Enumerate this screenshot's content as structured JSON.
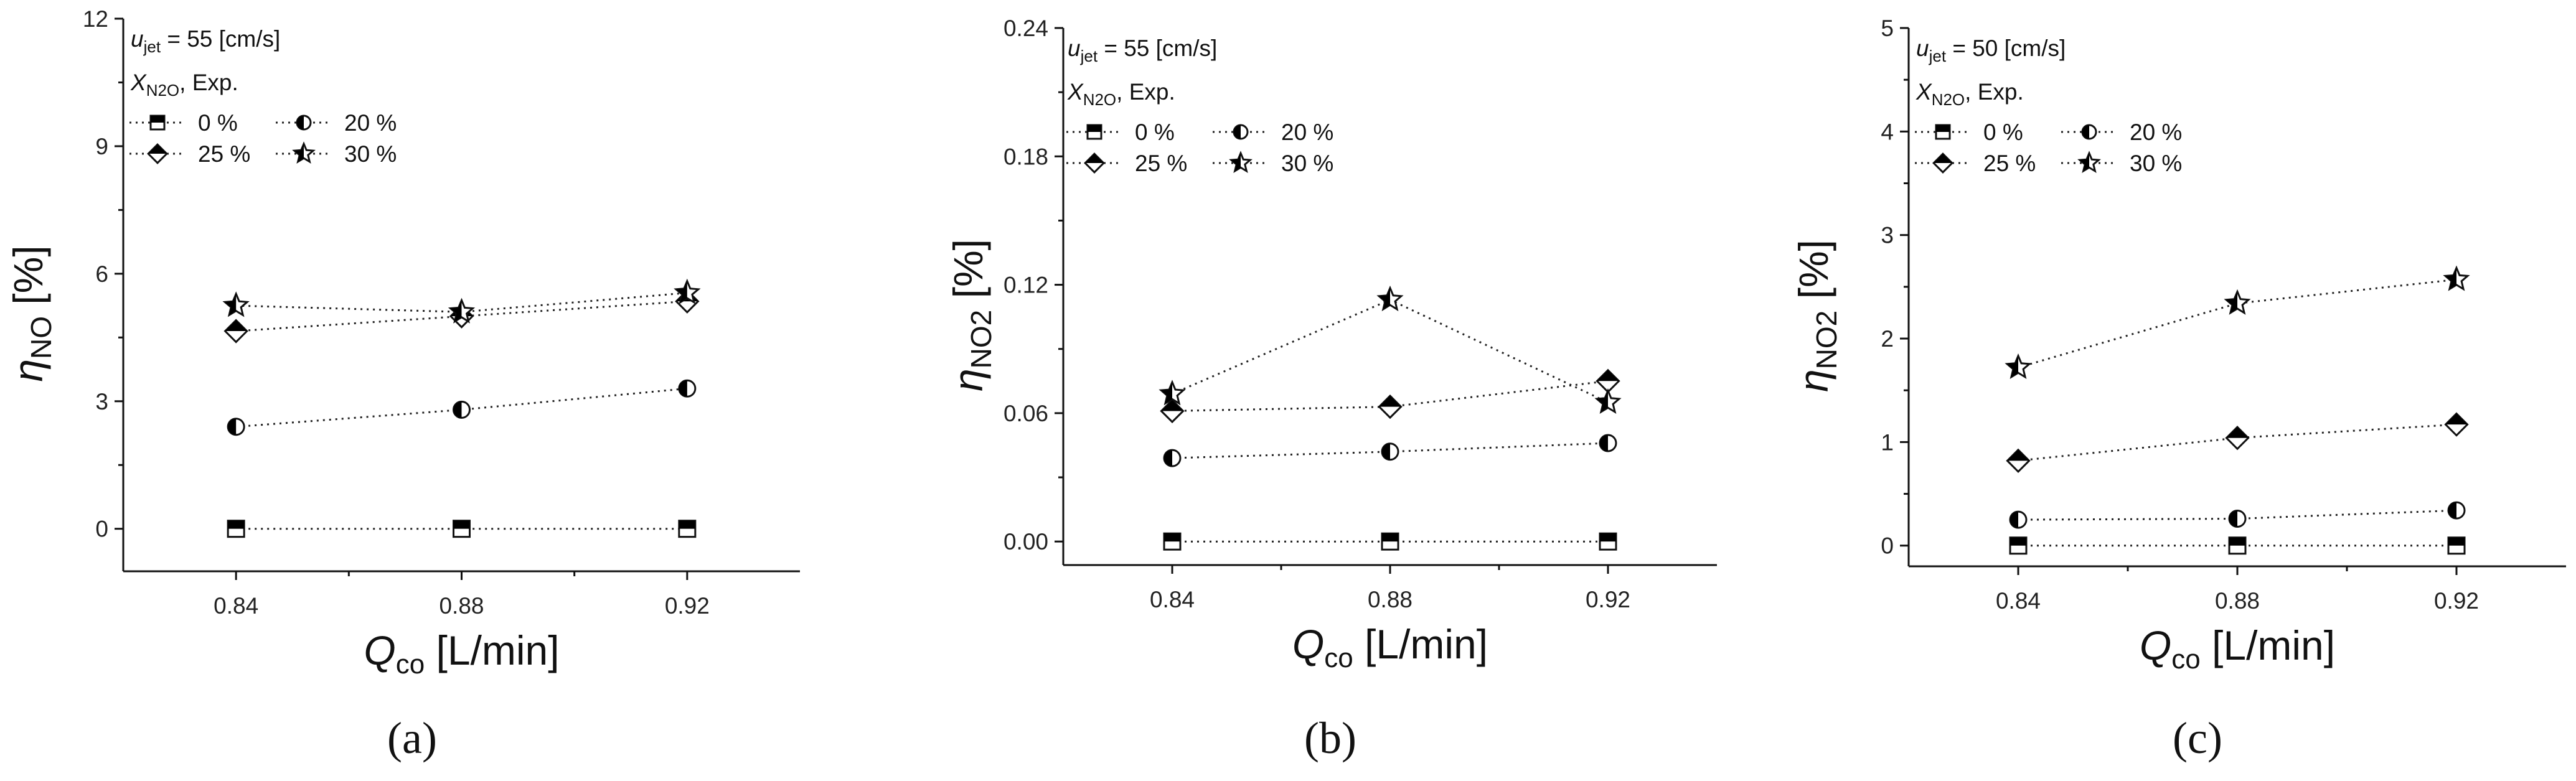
{
  "figure": {
    "panels": [
      {
        "panel_label": "(a)",
        "panel_letter": "a",
        "condition": "u_jet = 55 [cm/s]",
        "condition_symbol": "u",
        "condition_sub": "jet",
        "condition_rest": " = 55 [cm/s]"
      },
      {
        "panel_label": "(b)",
        "panel_letter": "b",
        "condition": "u_jet = 55 [cm/s]",
        "condition_symbol": "u",
        "condition_sub": "jet",
        "condition_rest": " = 55 [cm/s]"
      },
      {
        "panel_label": "(c)",
        "panel_letter": "c",
        "condition": "u_jet = 50 [cm/s]",
        "condition_symbol": "u",
        "condition_sub": "jet",
        "condition_rest": " = 50 [cm/s]"
      }
    ],
    "legend_title_symbol": "X",
    "legend_title_sub": "N2O",
    "legend_title_rest": ", Exp.",
    "xlabel_symbol": "Q",
    "xlabel_sub": "co",
    "xlabel_rest": " [L/min]",
    "ylabel_symbol": "η",
    "ylabel_rest": " [%]",
    "colors": {
      "marker_fill": "#000000",
      "marker_stroke": "#111111",
      "line": "#222222"
    }
  },
  "chart_data": [
    {
      "type": "scatter",
      "title": "(a)",
      "xlabel": "Q_co [L/min]",
      "ylabel": "η_NO [%]",
      "ylabel_sub": "NO",
      "x": [
        0.84,
        0.88,
        0.92
      ],
      "x_tick_labels": [
        "0.84",
        "0.88",
        "0.92"
      ],
      "xlim": [
        0.82,
        0.94
      ],
      "ylim": [
        -1,
        12
      ],
      "y_ticks": [
        0,
        3,
        6,
        9,
        12
      ],
      "y_tick_labels": [
        "0",
        "3",
        "6",
        "9",
        "12"
      ],
      "legend_title": "X_N2O, Exp.",
      "series": [
        {
          "name": "0 %",
          "marker": "square",
          "values": [
            0,
            0,
            0
          ]
        },
        {
          "name": "20 %",
          "marker": "circle",
          "values": [
            2.4,
            2.8,
            3.3
          ]
        },
        {
          "name": "25 %",
          "marker": "diamond",
          "values": [
            4.65,
            5.0,
            5.35
          ]
        },
        {
          "name": "30 %",
          "marker": "star",
          "values": [
            5.25,
            5.1,
            5.55
          ]
        }
      ]
    },
    {
      "type": "scatter",
      "title": "(b)",
      "xlabel": "Q_co [L/min]",
      "ylabel": "η_NO2 [%]",
      "ylabel_sub": "NO2",
      "x": [
        0.84,
        0.88,
        0.92
      ],
      "x_tick_labels": [
        "0.84",
        "0.88",
        "0.92"
      ],
      "xlim": [
        0.82,
        0.94
      ],
      "ylim": [
        -0.011,
        0.24
      ],
      "y_ticks": [
        0,
        0.06,
        0.12,
        0.18,
        0.24
      ],
      "y_tick_labels": [
        "0.00",
        "0.06",
        "0.12",
        "0.18",
        "0.24"
      ],
      "legend_title": "X_N2O, Exp.",
      "series": [
        {
          "name": "0 %",
          "marker": "square",
          "values": [
            0.0,
            0.0,
            0.0
          ]
        },
        {
          "name": "20 %",
          "marker": "circle",
          "values": [
            0.039,
            0.042,
            0.046
          ]
        },
        {
          "name": "25 %",
          "marker": "diamond",
          "values": [
            0.061,
            0.063,
            0.075
          ]
        },
        {
          "name": "30 %",
          "marker": "star",
          "values": [
            0.069,
            0.113,
            0.065
          ]
        }
      ]
    },
    {
      "type": "scatter",
      "title": "(c)",
      "xlabel": "Q_co [L/min]",
      "ylabel": "η_NO2 [%]",
      "ylabel_sub": "NO2",
      "x": [
        0.84,
        0.88,
        0.92
      ],
      "x_tick_labels": [
        "0.84",
        "0.88",
        "0.92"
      ],
      "xlim": [
        0.82,
        0.94
      ],
      "ylim": [
        -0.2,
        5
      ],
      "y_ticks": [
        0,
        1,
        2,
        3,
        4,
        5
      ],
      "y_tick_labels": [
        "0",
        "1",
        "2",
        "3",
        "4",
        "5"
      ],
      "legend_title": "X_N2O, Exp.",
      "series": [
        {
          "name": "0 %",
          "marker": "square",
          "values": [
            0,
            0,
            0
          ]
        },
        {
          "name": "20 %",
          "marker": "circle",
          "values": [
            0.25,
            0.26,
            0.34
          ]
        },
        {
          "name": "25 %",
          "marker": "diamond",
          "values": [
            0.82,
            1.04,
            1.17
          ]
        },
        {
          "name": "30 %",
          "marker": "star",
          "values": [
            1.72,
            2.34,
            2.57
          ]
        }
      ]
    }
  ]
}
